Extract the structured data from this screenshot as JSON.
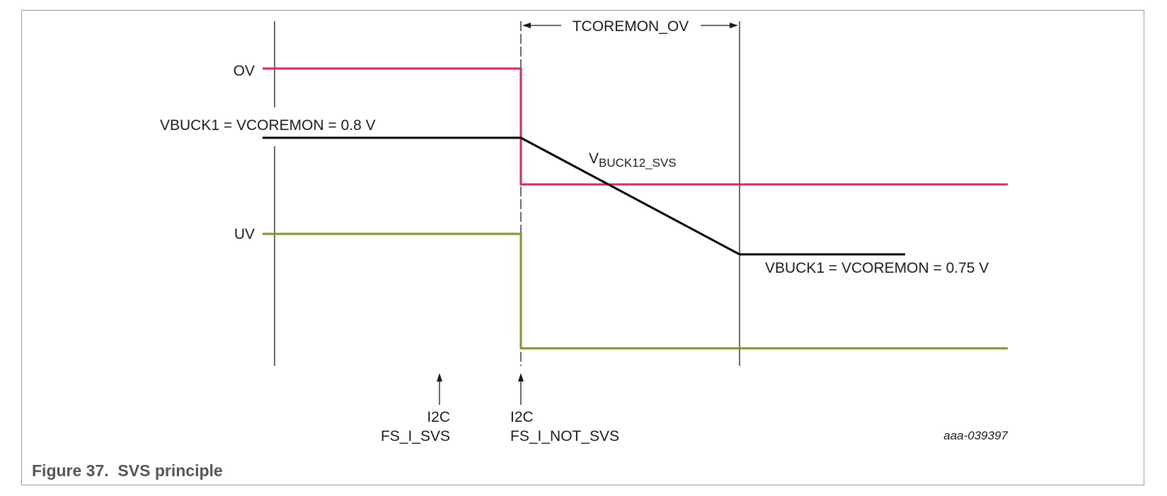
{
  "caption": "Figure 37.  SVS principle",
  "labels": {
    "ov": "OV",
    "uv": "UV",
    "vbuck_initial": "VBUCK1 = VCOREMON = 0.8 V",
    "vbuck_final": "VBUCK1 = VCOREMON = 0.75 V",
    "vbuck_svs_main": "V",
    "vbuck_svs_sub": "BUCK12_SVS",
    "timer": "TCOREMON_OV",
    "event1_line1": "I2C",
    "event1_line2": "FS_I_SVS",
    "event2_line1": "I2C",
    "event2_line2": "FS_I_NOT_SVS",
    "drawing_code": "aaa-039397"
  },
  "colors": {
    "ov_trace": "#e0245e",
    "uv_trace": "#7f9328",
    "vbuck_trace": "#000000",
    "guide_line": "#1a1a1a"
  }
}
